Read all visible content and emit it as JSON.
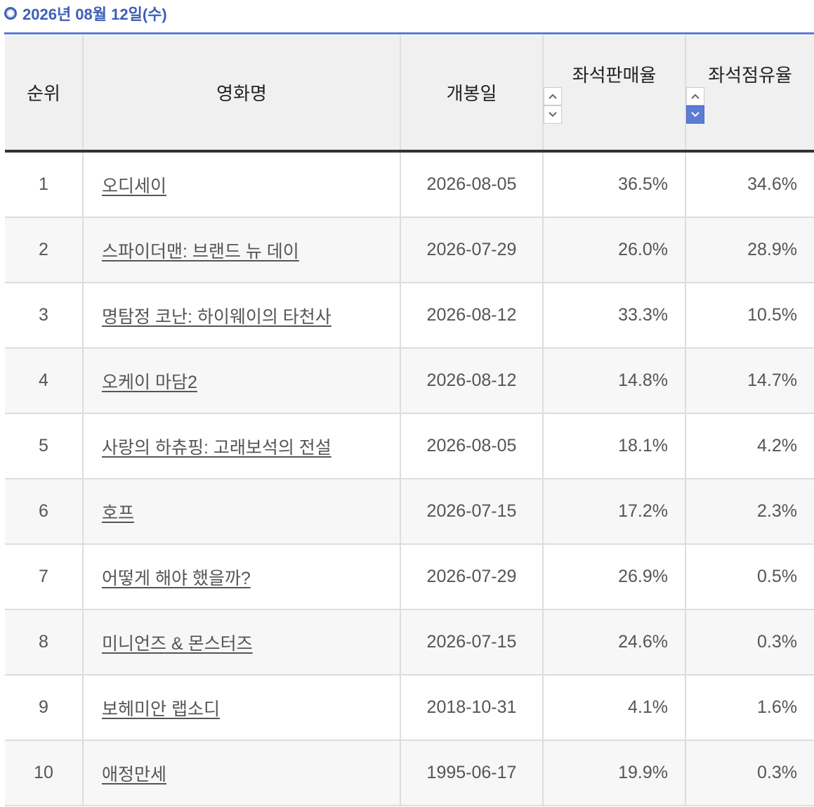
{
  "header": {
    "title": "2026년 08월 12일(수)"
  },
  "table": {
    "columns": [
      "순위",
      "영화명",
      "개봉일",
      "좌석판매율",
      "좌석점유율"
    ],
    "rows": [
      [
        "1",
        "오디세이",
        "2026-08-05",
        "36.5%",
        "34.6%"
      ],
      [
        "2",
        "스파이더맨: 브랜드 뉴 데이",
        "2026-07-29",
        "26.0%",
        "28.9%"
      ],
      [
        "3",
        "명탐정 코난: 하이웨이의 타천사",
        "2026-08-12",
        "33.3%",
        "10.5%"
      ],
      [
        "4",
        "오케이 마담2",
        "2026-08-12",
        "14.8%",
        "14.7%"
      ],
      [
        "5",
        "사랑의 하츄핑: 고래보석의 전설",
        "2026-08-05",
        "18.1%",
        "4.2%"
      ],
      [
        "6",
        "호프",
        "2026-07-15",
        "17.2%",
        "2.3%"
      ],
      [
        "7",
        "어떻게 해야 했을까?",
        "2026-07-29",
        "26.9%",
        "0.5%"
      ],
      [
        "8",
        "미니언즈 & 몬스터즈",
        "2026-07-15",
        "24.6%",
        "0.3%"
      ],
      [
        "9",
        "보헤미안 랩소디",
        "2018-10-31",
        "4.1%",
        "1.6%"
      ],
      [
        "10",
        "애정만세",
        "1995-06-17",
        "19.9%",
        "0.3%"
      ]
    ]
  }
}
